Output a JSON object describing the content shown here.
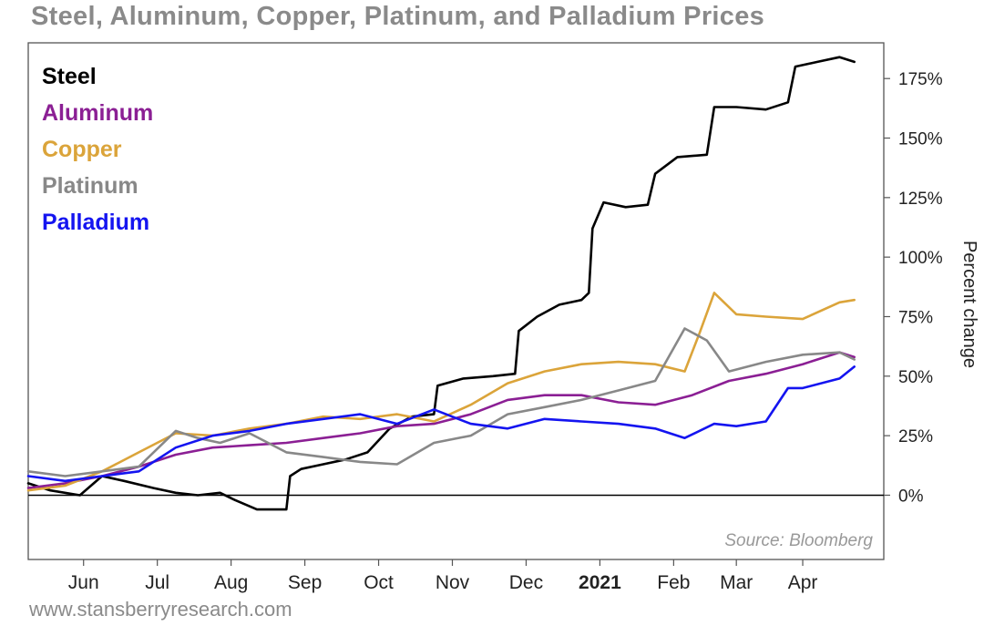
{
  "title": "Steel, Aluminum, Copper, Platinum, and Palladium Prices",
  "footer": "www.stansberryresearch.com",
  "source_note": "Source: Bloomberg",
  "chart_data": {
    "type": "line",
    "title": "Steel, Aluminum, Copper, Platinum, and Palladium Prices",
    "xlabel": "",
    "ylabel": "Percent change",
    "ylim": [
      -27,
      190
    ],
    "xlim": [
      0,
      11.5
    ],
    "grid": false,
    "legend_position": "top-left",
    "x_ticks": [
      {
        "label": "Jun",
        "at": 0.75,
        "bold": false
      },
      {
        "label": "Jul",
        "at": 1.75,
        "bold": false
      },
      {
        "label": "Aug",
        "at": 2.75,
        "bold": false
      },
      {
        "label": "Sep",
        "at": 3.75,
        "bold": false
      },
      {
        "label": "Oct",
        "at": 4.75,
        "bold": false
      },
      {
        "label": "Nov",
        "at": 5.75,
        "bold": false
      },
      {
        "label": "Dec",
        "at": 6.75,
        "bold": false
      },
      {
        "label": "2021",
        "at": 7.75,
        "bold": true
      },
      {
        "label": "Feb",
        "at": 8.75,
        "bold": false
      },
      {
        "label": "Mar",
        "at": 9.6,
        "bold": false
      },
      {
        "label": "Apr",
        "at": 10.5,
        "bold": false
      }
    ],
    "y_ticks": [
      {
        "value": 0,
        "label": "0%"
      },
      {
        "value": 25,
        "label": "25%"
      },
      {
        "value": 50,
        "label": "50%"
      },
      {
        "value": 75,
        "label": "75%"
      },
      {
        "value": 100,
        "label": "100%"
      },
      {
        "value": 125,
        "label": "125%"
      },
      {
        "value": 150,
        "label": "150%"
      },
      {
        "value": 175,
        "label": "175%"
      }
    ],
    "series": [
      {
        "name": "Steel",
        "color": "#000000",
        "x": [
          0,
          0.3,
          0.7,
          1.0,
          1.3,
          1.7,
          2.0,
          2.3,
          2.6,
          2.8,
          3.1,
          3.5,
          3.55,
          3.7,
          4.0,
          4.3,
          4.6,
          4.9,
          5.2,
          5.5,
          5.55,
          5.9,
          6.3,
          6.6,
          6.65,
          6.9,
          7.2,
          7.5,
          7.6,
          7.65,
          7.8,
          8.1,
          8.4,
          8.5,
          8.8,
          9.2,
          9.3,
          9.6,
          10.0,
          10.3,
          10.4,
          10.7,
          11.0,
          11.2
        ],
        "y": [
          5,
          2,
          0,
          8,
          6,
          3,
          1,
          0,
          1,
          -2,
          -6,
          -6,
          8,
          11,
          13,
          15,
          18,
          28,
          33,
          34,
          46,
          49,
          50,
          51,
          69,
          75,
          80,
          82,
          85,
          112,
          123,
          121,
          122,
          135,
          142,
          143,
          163,
          163,
          162,
          165,
          180,
          182,
          184,
          182
        ]
      },
      {
        "name": "Aluminum",
        "color": "#8b1f94",
        "x": [
          0,
          0.5,
          1.0,
          1.5,
          2.0,
          2.5,
          3.0,
          3.5,
          4.0,
          4.5,
          5.0,
          5.5,
          6.0,
          6.5,
          7.0,
          7.5,
          8.0,
          8.5,
          9.0,
          9.5,
          10.0,
          10.5,
          11.0,
          11.2
        ],
        "y": [
          3,
          5,
          8,
          12,
          17,
          20,
          21,
          22,
          24,
          26,
          29,
          30,
          34,
          40,
          42,
          42,
          39,
          38,
          42,
          48,
          51,
          55,
          60,
          58
        ]
      },
      {
        "name": "Copper",
        "color": "#dba43a",
        "x": [
          0,
          0.5,
          1.0,
          1.5,
          2.0,
          2.5,
          3.0,
          3.5,
          4.0,
          4.5,
          5.0,
          5.5,
          6.0,
          6.5,
          7.0,
          7.5,
          8.0,
          8.5,
          8.9,
          9.1,
          9.3,
          9.6,
          10.0,
          10.5,
          11.0,
          11.2
        ],
        "y": [
          2,
          4,
          10,
          18,
          26,
          25,
          28,
          30,
          33,
          32,
          34,
          31,
          38,
          47,
          52,
          55,
          56,
          55,
          52,
          68,
          85,
          76,
          75,
          74,
          81,
          82
        ]
      },
      {
        "name": "Platinum",
        "color": "#888888",
        "x": [
          0,
          0.5,
          1.0,
          1.5,
          2.0,
          2.3,
          2.6,
          3.0,
          3.5,
          4.0,
          4.5,
          5.0,
          5.5,
          6.0,
          6.5,
          7.0,
          7.5,
          8.0,
          8.5,
          8.9,
          9.2,
          9.5,
          10.0,
          10.5,
          11.0,
          11.2
        ],
        "y": [
          10,
          8,
          10,
          12,
          27,
          24,
          22,
          26,
          18,
          16,
          14,
          13,
          22,
          25,
          34,
          37,
          40,
          44,
          48,
          70,
          65,
          52,
          56,
          59,
          60,
          57
        ]
      },
      {
        "name": "Palladium",
        "color": "#1414f0",
        "x": [
          0,
          0.5,
          1.0,
          1.5,
          2.0,
          2.5,
          3.0,
          3.5,
          4.0,
          4.5,
          5.0,
          5.5,
          6.0,
          6.5,
          7.0,
          7.5,
          8.0,
          8.5,
          8.9,
          9.3,
          9.6,
          10.0,
          10.3,
          10.5,
          11.0,
          11.2
        ],
        "y": [
          8,
          6,
          8,
          10,
          20,
          25,
          27,
          30,
          32,
          34,
          30,
          36,
          30,
          28,
          32,
          31,
          30,
          28,
          24,
          30,
          29,
          31,
          45,
          45,
          49,
          54
        ]
      }
    ]
  }
}
